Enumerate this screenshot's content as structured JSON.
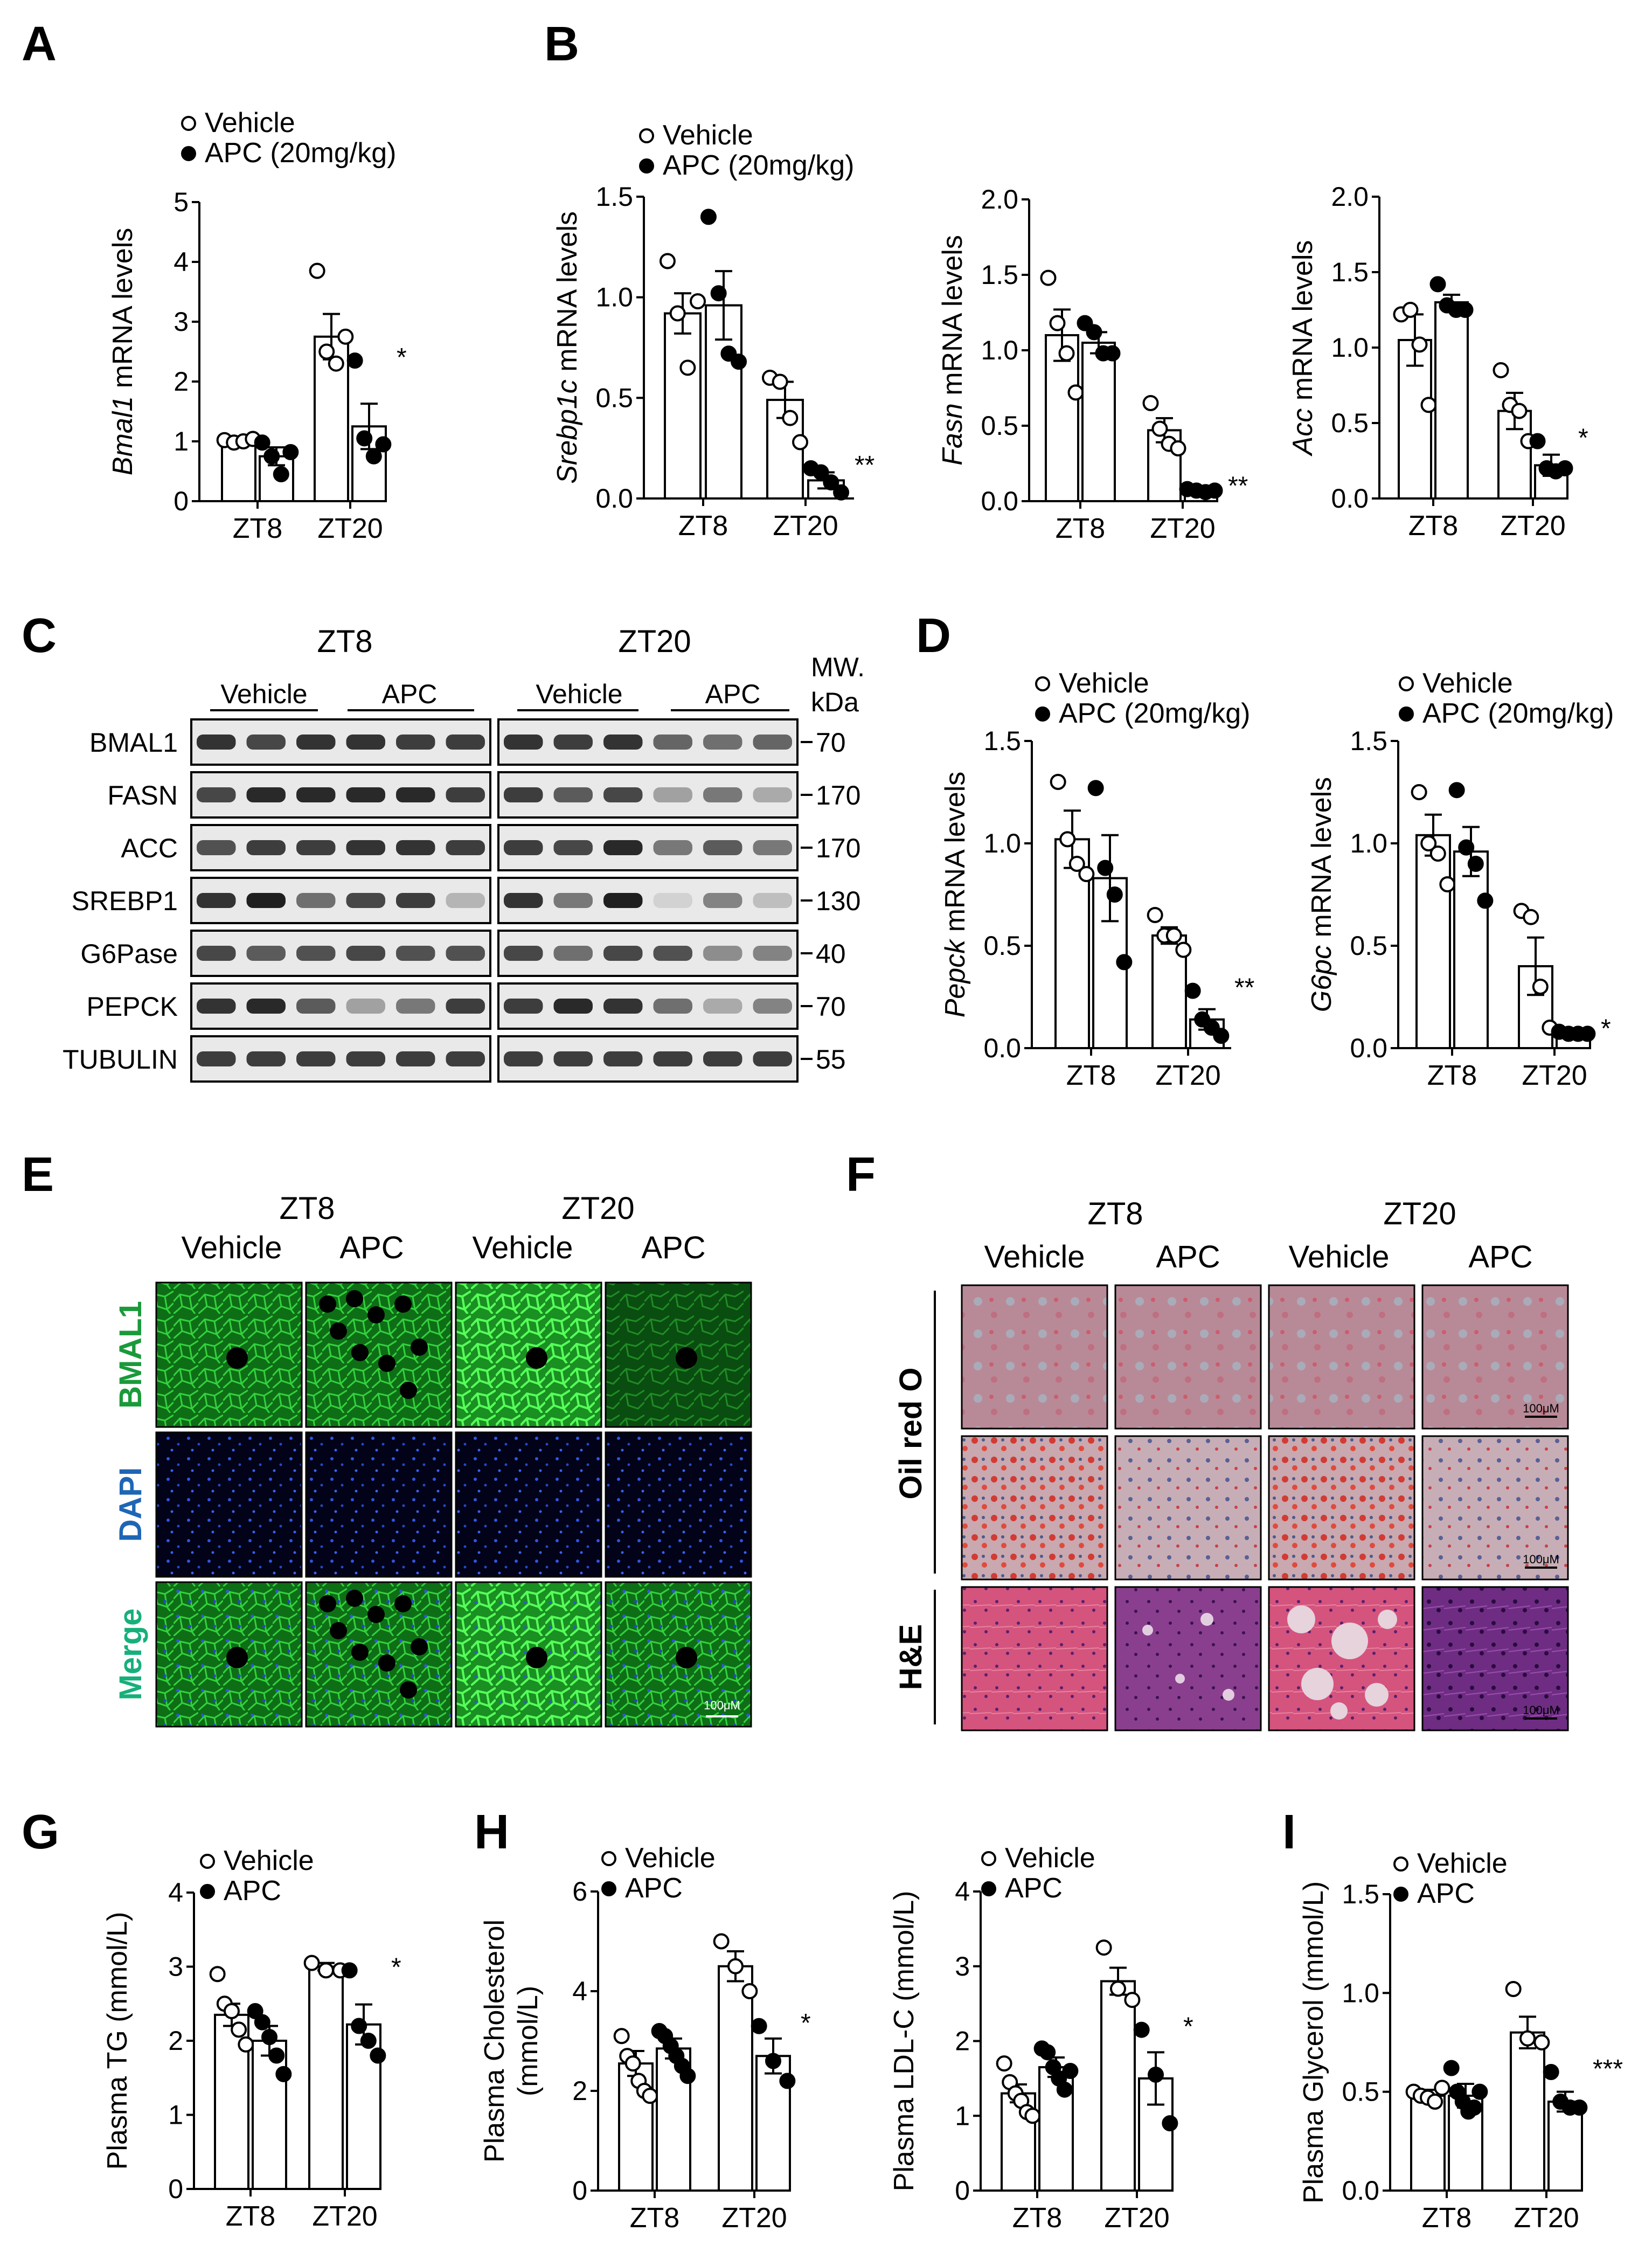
{
  "figure": {
    "panel_labels": [
      "A",
      "B",
      "C",
      "D",
      "E",
      "F",
      "G",
      "H",
      "I"
    ]
  },
  "legend": {
    "vehicle": "Vehicle",
    "apc_dose": "APC (20mg/kg)",
    "apc": "APC"
  },
  "colors": {
    "vehicle_fill": "#ffffff",
    "apc_fill": "#000000",
    "stroke": "#000000"
  },
  "chart_data": [
    {
      "id": "A",
      "type": "bar",
      "ylabel_italic": "Bmal1",
      "ylabel_rest": " mRNA levels",
      "categories": [
        "ZT8",
        "ZT20"
      ],
      "ylim": [
        0,
        5
      ],
      "yticks": [
        "0",
        "1",
        "2",
        "3",
        "4",
        "5"
      ],
      "legend_labels": [
        "Vehicle",
        "APC (20mg/kg)"
      ],
      "series": [
        {
          "name": "Vehicle",
          "values": [
            1.0,
            2.75
          ],
          "err": [
            0.04,
            0.38
          ],
          "points": [
            [
              1.02,
              0.98,
              1.0,
              1.04
            ],
            [
              3.85,
              2.5,
              2.3,
              2.75
            ]
          ]
        },
        {
          "name": "APC (20mg/kg)",
          "values": [
            0.75,
            1.25
          ],
          "err": [
            0.15,
            0.38
          ],
          "points": [
            [
              0.98,
              0.75,
              0.45,
              0.82
            ],
            [
              2.35,
              1.05,
              0.75,
              0.95
            ]
          ]
        }
      ],
      "annotations": [
        {
          "category": 1,
          "text": "*"
        }
      ]
    },
    {
      "id": "B1",
      "type": "bar",
      "ylabel_italic": "Srebp1c",
      "ylabel_rest": " mRNA levels",
      "categories": [
        "ZT8",
        "ZT20"
      ],
      "ylim": [
        0,
        1.5
      ],
      "yticks": [
        "0.0",
        "0.5",
        "1.0",
        "1.5"
      ],
      "legend_labels": [
        "Vehicle",
        "APC (20mg/kg)"
      ],
      "series": [
        {
          "name": "Vehicle",
          "values": [
            0.92,
            0.49
          ],
          "err": [
            0.1,
            0.09
          ],
          "points": [
            [
              1.18,
              0.92,
              0.65,
              0.98
            ],
            [
              0.6,
              0.58,
              0.4,
              0.28
            ]
          ]
        },
        {
          "name": "APC (20mg/kg)",
          "values": [
            0.96,
            0.09
          ],
          "err": [
            0.17,
            0.04
          ],
          "points": [
            [
              1.4,
              1.02,
              0.72,
              0.68
            ],
            [
              0.15,
              0.13,
              0.08,
              0.03
            ]
          ]
        }
      ],
      "annotations": [
        {
          "category": 1,
          "text": "**"
        }
      ]
    },
    {
      "id": "B2",
      "type": "bar",
      "ylabel_italic": "Fasn",
      "ylabel_rest": " mRNA levels",
      "categories": [
        "ZT8",
        "ZT20"
      ],
      "ylim": [
        0,
        2.0
      ],
      "yticks": [
        "0.0",
        "0.5",
        "1.0",
        "1.5",
        "2.0"
      ],
      "series": [
        {
          "name": "Vehicle",
          "values": [
            1.1,
            0.47
          ],
          "err": [
            0.17,
            0.08
          ],
          "points": [
            [
              1.48,
              1.18,
              0.98,
              0.72
            ],
            [
              0.65,
              0.48,
              0.38,
              0.35
            ]
          ]
        },
        {
          "name": "APC (20mg/kg)",
          "values": [
            1.05,
            0.07
          ],
          "err": [
            0.07,
            0.01
          ],
          "points": [
            [
              1.18,
              1.12,
              0.98,
              0.98
            ],
            [
              0.08,
              0.07,
              0.06,
              0.07
            ]
          ]
        }
      ],
      "annotations": [
        {
          "category": 1,
          "text": "**"
        }
      ]
    },
    {
      "id": "B3",
      "type": "bar",
      "ylabel_italic": "Acc",
      "ylabel_rest": " mRNA levels",
      "categories": [
        "ZT8",
        "ZT20"
      ],
      "ylim": [
        0,
        2.0
      ],
      "yticks": [
        "0.0",
        "0.5",
        "1.0",
        "1.5",
        "2.0"
      ],
      "series": [
        {
          "name": "Vehicle",
          "values": [
            1.05,
            0.58
          ],
          "err": [
            0.17,
            0.12
          ],
          "points": [
            [
              1.22,
              1.25,
              1.02,
              0.62
            ],
            [
              0.85,
              0.62,
              0.58,
              0.38
            ]
          ]
        },
        {
          "name": "APC (20mg/kg)",
          "values": [
            1.3,
            0.22
          ],
          "err": [
            0.05,
            0.07
          ],
          "points": [
            [
              1.42,
              1.28,
              1.25,
              1.25
            ],
            [
              0.38,
              0.2,
              0.18,
              0.2
            ]
          ]
        }
      ],
      "annotations": [
        {
          "category": 1,
          "text": "*"
        }
      ]
    },
    {
      "id": "D1",
      "type": "bar",
      "ylabel_italic": "Pepck",
      "ylabel_rest": " mRNA levels",
      "categories": [
        "ZT8",
        "ZT20"
      ],
      "ylim": [
        0,
        1.5
      ],
      "yticks": [
        "0.0",
        "0.5",
        "1.0",
        "1.5"
      ],
      "legend_labels": [
        "Vehicle",
        "APC (20mg/kg)"
      ],
      "series": [
        {
          "name": "Vehicle",
          "values": [
            1.02,
            0.55
          ],
          "err": [
            0.14,
            0.04
          ],
          "points": [
            [
              1.3,
              1.02,
              0.9,
              0.85
            ],
            [
              0.65,
              0.55,
              0.55,
              0.48
            ]
          ]
        },
        {
          "name": "APC (20mg/kg)",
          "values": [
            0.83,
            0.14
          ],
          "err": [
            0.21,
            0.05
          ],
          "points": [
            [
              1.27,
              0.88,
              0.75,
              0.42
            ],
            [
              0.28,
              0.14,
              0.1,
              0.06
            ]
          ]
        }
      ],
      "annotations": [
        {
          "category": 1,
          "text": "**"
        }
      ]
    },
    {
      "id": "D2",
      "type": "bar",
      "ylabel_italic": "G6pc",
      "ylabel_rest": " mRNA levels",
      "categories": [
        "ZT8",
        "ZT20"
      ],
      "ylim": [
        0,
        1.5
      ],
      "yticks": [
        "0.0",
        "0.5",
        "1.0",
        "1.5"
      ],
      "legend_labels": [
        "Vehicle",
        "APC (20mg/kg)"
      ],
      "series": [
        {
          "name": "Vehicle",
          "values": [
            1.04,
            0.4
          ],
          "err": [
            0.1,
            0.14
          ],
          "points": [
            [
              1.25,
              1.0,
              0.95,
              0.8
            ],
            [
              0.67,
              0.64,
              0.3,
              0.1
            ]
          ]
        },
        {
          "name": "APC (20mg/kg)",
          "values": [
            0.96,
            0.07
          ],
          "err": [
            0.12,
            0.01
          ],
          "points": [
            [
              1.26,
              0.98,
              0.9,
              0.72
            ],
            [
              0.08,
              0.07,
              0.07,
              0.07
            ]
          ]
        }
      ],
      "annotations": [
        {
          "category": 1,
          "text": "*"
        }
      ]
    },
    {
      "id": "G",
      "type": "bar",
      "ylabel": "Plasma TG (mmol/L)",
      "categories": [
        "ZT8",
        "ZT20"
      ],
      "ylim": [
        0,
        4
      ],
      "yticks": [
        "0",
        "1",
        "2",
        "3",
        "4"
      ],
      "legend_labels": [
        "Vehicle",
        "APC"
      ],
      "series": [
        {
          "name": "Vehicle",
          "values": [
            2.35,
            3.0
          ],
          "err": [
            0.15,
            0.05
          ],
          "points": [
            [
              2.9,
              2.5,
              2.4,
              2.15,
              1.95
            ],
            [
              3.05,
              2.95,
              2.95
            ]
          ]
        },
        {
          "name": "APC",
          "values": [
            2.0,
            2.22
          ],
          "err": [
            0.2,
            0.27
          ],
          "points": [
            [
              2.4,
              2.25,
              2.05,
              1.8,
              1.55
            ],
            [
              2.95,
              2.2,
              2.0,
              1.8
            ]
          ]
        }
      ],
      "annotations": [
        {
          "category": 1,
          "text": "*"
        }
      ]
    },
    {
      "id": "H1",
      "type": "bar",
      "ylabel": "Plasma Cholesterol",
      "ylabel2": "(mmol/L)",
      "categories": [
        "ZT8",
        "ZT20"
      ],
      "ylim": [
        0,
        6
      ],
      "yticks": [
        "0",
        "2",
        "4",
        "6"
      ],
      "legend_labels": [
        "Vehicle",
        "APC"
      ],
      "series": [
        {
          "name": "Vehicle",
          "values": [
            2.55,
            4.5
          ],
          "err": [
            0.25,
            0.3
          ],
          "points": [
            [
              3.1,
              2.7,
              2.55,
              2.2,
              2.0,
              1.9
            ],
            [
              5.0,
              4.5,
              4.0
            ]
          ]
        },
        {
          "name": "APC",
          "values": [
            2.85,
            2.7
          ],
          "err": [
            0.2,
            0.35
          ],
          "points": [
            [
              3.2,
              3.1,
              2.9,
              2.7,
              2.5,
              2.3
            ],
            [
              3.3,
              2.6,
              2.2
            ]
          ]
        }
      ],
      "annotations": [
        {
          "category": 1,
          "text": "*"
        }
      ]
    },
    {
      "id": "H2",
      "type": "bar",
      "ylabel": "Plasma LDL-C (mmol/L)",
      "categories": [
        "ZT8",
        "ZT20"
      ],
      "ylim": [
        0,
        4
      ],
      "yticks": [
        "0",
        "1",
        "2",
        "3",
        "4"
      ],
      "legend_labels": [
        "Vehicle",
        "APC"
      ],
      "series": [
        {
          "name": "Vehicle",
          "values": [
            1.3,
            2.8
          ],
          "err": [
            0.12,
            0.18
          ],
          "points": [
            [
              1.7,
              1.45,
              1.3,
              1.2,
              1.05,
              1.0
            ],
            [
              3.25,
              2.7,
              2.55
            ]
          ]
        },
        {
          "name": "APC",
          "values": [
            1.65,
            1.5
          ],
          "err": [
            0.13,
            0.35
          ],
          "points": [
            [
              1.9,
              1.85,
              1.65,
              1.5,
              1.35,
              1.6
            ],
            [
              2.15,
              1.55,
              0.9
            ]
          ]
        }
      ],
      "annotations": [
        {
          "category": 1,
          "text": "*"
        }
      ]
    },
    {
      "id": "I",
      "type": "bar",
      "ylabel": "Plasma Glycerol (mmol/L)",
      "categories": [
        "ZT8",
        "ZT20"
      ],
      "ylim": [
        0,
        1.5
      ],
      "yticks": [
        "0.0",
        "0.5",
        "1.0",
        "1.5"
      ],
      "legend_labels": [
        "Vehicle",
        "APC"
      ],
      "series": [
        {
          "name": "Vehicle",
          "values": [
            0.48,
            0.8
          ],
          "err": [
            0.03,
            0.08
          ],
          "points": [
            [
              0.5,
              0.48,
              0.47,
              0.45,
              0.52
            ],
            [
              1.02,
              0.77,
              0.75
            ]
          ]
        },
        {
          "name": "APC",
          "values": [
            0.48,
            0.45
          ],
          "err": [
            0.06,
            0.05
          ],
          "points": [
            [
              0.62,
              0.5,
              0.45,
              0.4,
              0.42,
              0.5
            ],
            [
              0.6,
              0.45,
              0.42,
              0.42
            ]
          ]
        }
      ],
      "annotations": [
        {
          "category": 1,
          "text": "***"
        }
      ]
    }
  ],
  "panelC": {
    "group_labels": [
      "ZT8",
      "ZT20"
    ],
    "sub_labels": [
      "Vehicle",
      "APC",
      "Vehicle",
      "APC"
    ],
    "mw_header": [
      "MW.",
      "kDa"
    ],
    "proteins": [
      "BMAL1",
      "FASN",
      "ACC",
      "SREBP1",
      "G6Pase",
      "PEPCK",
      "TUBULIN"
    ],
    "mw_values": [
      "70",
      "170",
      "170",
      "130",
      "40",
      "70",
      "55"
    ],
    "intensity": [
      [
        0.9,
        0.8,
        0.9,
        0.9,
        0.85,
        0.85,
        0.9,
        0.85,
        0.9,
        0.65,
        0.6,
        0.65
      ],
      [
        0.8,
        0.95,
        0.95,
        0.95,
        0.95,
        0.85,
        0.85,
        0.7,
        0.8,
        0.35,
        0.55,
        0.3
      ],
      [
        0.75,
        0.85,
        0.85,
        0.9,
        0.9,
        0.85,
        0.85,
        0.8,
        0.95,
        0.55,
        0.7,
        0.55
      ],
      [
        0.9,
        1.0,
        0.6,
        0.8,
        0.85,
        0.25,
        0.9,
        0.55,
        1.0,
        0.1,
        0.5,
        0.2
      ],
      [
        0.8,
        0.7,
        0.75,
        0.8,
        0.75,
        0.75,
        0.8,
        0.6,
        0.8,
        0.75,
        0.45,
        0.5
      ],
      [
        0.9,
        0.95,
        0.7,
        0.35,
        0.55,
        0.85,
        0.85,
        0.95,
        0.9,
        0.6,
        0.3,
        0.5
      ],
      [
        0.85,
        0.85,
        0.85,
        0.85,
        0.85,
        0.85,
        0.85,
        0.85,
        0.85,
        0.85,
        0.85,
        0.85
      ]
    ]
  },
  "panelE": {
    "group_labels": [
      "ZT8",
      "ZT20"
    ],
    "col_labels": [
      "Vehicle",
      "APC",
      "Vehicle",
      "APC"
    ],
    "row_labels": [
      "BMAL1",
      "DAPI",
      "Merge"
    ],
    "row_colors": [
      "#1a9a3a",
      "#1e66b5",
      "#16b07a"
    ],
    "scale_bar": "100μM"
  },
  "panelF": {
    "group_labels": [
      "ZT8",
      "ZT20"
    ],
    "col_labels": [
      "Vehicle",
      "APC",
      "Vehicle",
      "APC"
    ],
    "row_labels": [
      "Oil red O",
      "H&E"
    ],
    "scale_bar": "100μM"
  }
}
